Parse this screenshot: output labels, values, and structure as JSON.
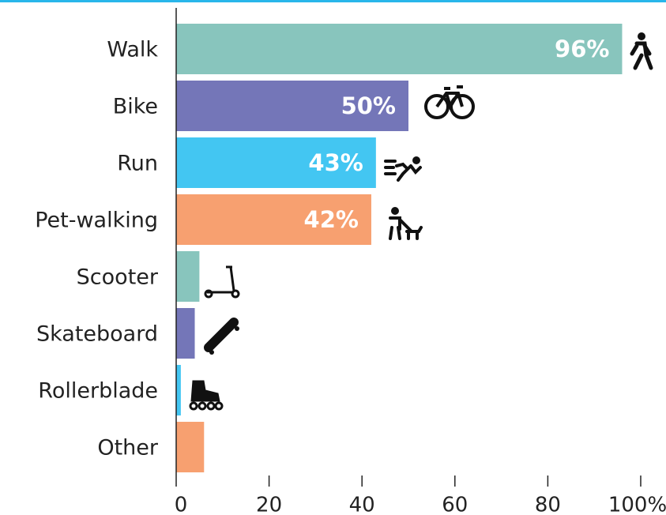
{
  "chart_data": {
    "type": "bar",
    "orientation": "horizontal",
    "categories": [
      "Walk",
      "Bike",
      "Run",
      "Pet-walking",
      "Scooter",
      "Skateboard",
      "Rollerblade",
      "Other"
    ],
    "values": [
      96,
      50,
      43,
      42,
      5,
      4,
      1,
      6
    ],
    "value_labels": [
      "96%",
      "50%",
      "43%",
      "42%",
      null,
      null,
      null,
      null
    ],
    "colors": [
      "#88c5bd",
      "#7476b8",
      "#43c6f2",
      "#f7a070",
      "#88c5bd",
      "#7476b8",
      "#43c6f2",
      "#f7a070"
    ],
    "xlim": [
      0,
      100
    ],
    "xticks": [
      0,
      20,
      40,
      60,
      80,
      {
        "value": 100,
        "label": "100%"
      }
    ],
    "grid": false
  }
}
